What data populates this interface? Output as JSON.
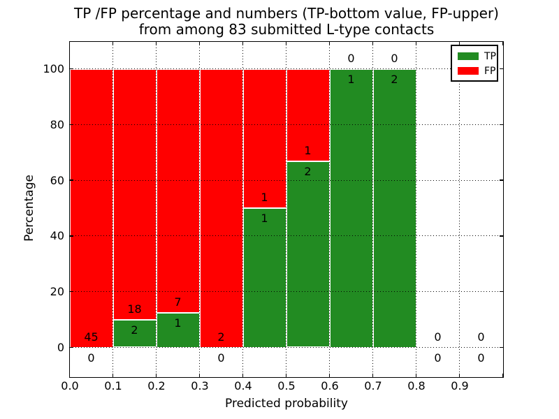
{
  "title": {
    "line1": "TP /FP percentage and numbers (TP-bottom value, FP-upper)",
    "line2": "from among 83 submitted L-type contacts"
  },
  "axes": {
    "xlabel": "Predicted probability",
    "ylabel": "Percentage",
    "x_tick_labels": [
      "0.0",
      "0.1",
      "0.2",
      "0.3",
      "0.4",
      "0.5",
      "0.6",
      "0.7",
      "0.8",
      "0.9"
    ],
    "y_tick_labels": [
      "0",
      "20",
      "40",
      "60",
      "80",
      "100"
    ]
  },
  "legend": {
    "items": [
      {
        "label": "TP",
        "color": "#228B22"
      },
      {
        "label": "FP",
        "color": "#ff0000"
      }
    ]
  },
  "colors": {
    "tp": "#228B22",
    "fp": "#ff0000",
    "grid": "#000000",
    "background": "#ffffff",
    "text": "#000000"
  },
  "chart_data": {
    "type": "bar",
    "stacked": true,
    "title": "TP /FP percentage and numbers (TP-bottom value, FP-upper) from among 83 submitted L-type contacts",
    "xlabel": "Predicted probability",
    "ylabel": "Percentage",
    "total_contacts": 83,
    "bin_width": 0.1,
    "bin_starts": [
      0.0,
      0.1,
      0.2,
      0.3,
      0.4,
      0.5,
      0.6,
      0.7,
      0.8,
      0.9
    ],
    "categories": [
      "0.0-0.1",
      "0.1-0.2",
      "0.2-0.3",
      "0.3-0.4",
      "0.4-0.5",
      "0.5-0.6",
      "0.6-0.7",
      "0.7-0.8",
      "0.8-0.9",
      "0.9-1.0"
    ],
    "series": [
      {
        "name": "TP",
        "color": "#228B22",
        "counts": [
          0,
          2,
          1,
          0,
          1,
          2,
          1,
          2,
          0,
          0
        ],
        "percent": [
          0,
          10,
          12.5,
          0,
          50,
          66.67,
          100,
          100,
          0,
          0
        ]
      },
      {
        "name": "FP",
        "color": "#ff0000",
        "counts": [
          45,
          18,
          7,
          2,
          1,
          1,
          0,
          0,
          0,
          0
        ],
        "percent": [
          100,
          90,
          87.5,
          100,
          50,
          33.33,
          0,
          0,
          0,
          0
        ]
      }
    ],
    "xticks": [
      0.0,
      0.1,
      0.2,
      0.3,
      0.4,
      0.5,
      0.6,
      0.7,
      0.8,
      0.9
    ],
    "yticks": [
      0,
      20,
      40,
      60,
      80,
      100
    ],
    "xlim": [
      0.0,
      1.0
    ],
    "ylim": [
      -10.5,
      110
    ],
    "grid": "dotted",
    "legend_position": "upper right",
    "annotation_rule": "TP count drawn below segment boundary, FP count drawn above boundary"
  }
}
